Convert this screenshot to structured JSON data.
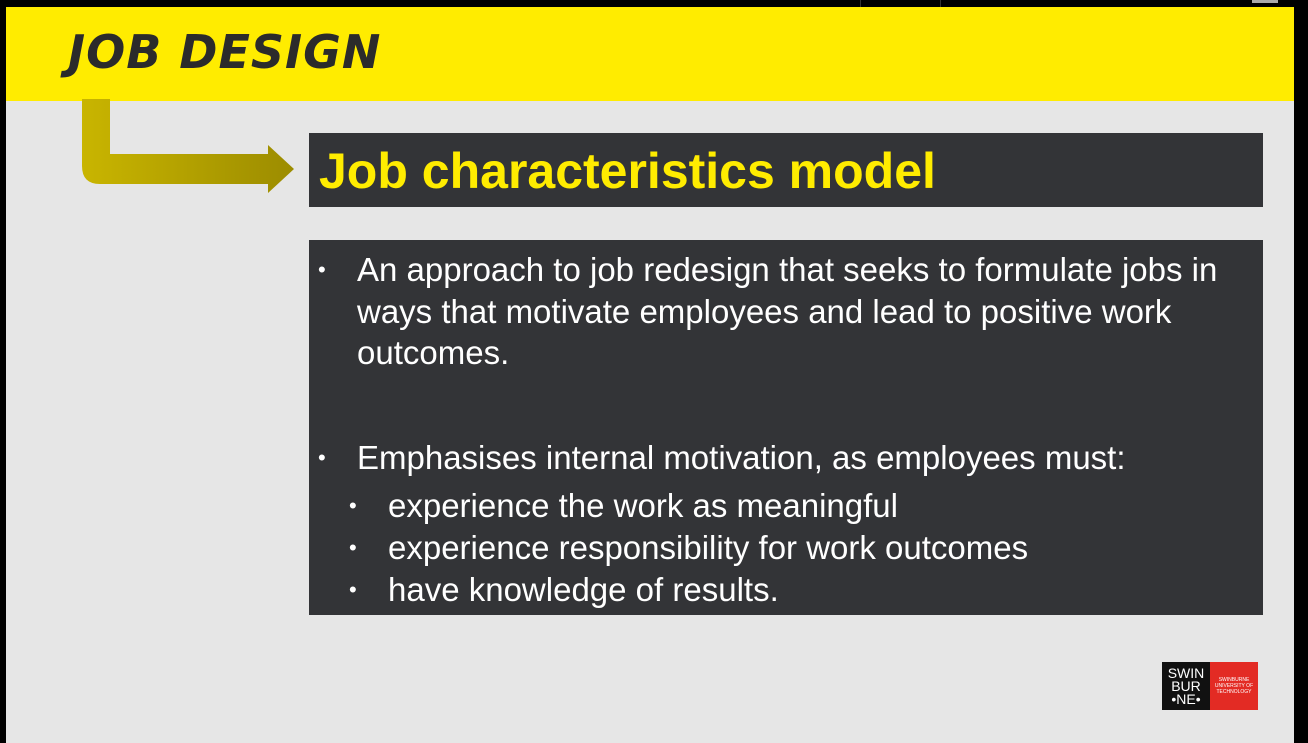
{
  "slide": {
    "title": "JOB DESIGN",
    "heading": "Job characteristics model",
    "bullets": [
      "An approach to job redesign that seeks to formulate jobs in ways that motivate employees and lead to positive work outcomes.",
      "Emphasises internal motivation, as employees must:"
    ],
    "sub_bullets": [
      "experience the work as meaningful",
      "experience responsibility for work outcomes",
      "have knowledge of results."
    ],
    "bullet_glyph": "•"
  },
  "logo": {
    "lines": [
      "SWIN",
      "BUR",
      "•NE•"
    ],
    "subtext_lines": [
      "SWINBURNE",
      "UNIVERSITY OF",
      "TECHNOLOGY"
    ]
  },
  "colors": {
    "accent_yellow": "#ffec00",
    "box_dark": "#333437",
    "slide_bg": "#e6e6e6",
    "logo_red": "#e32b24"
  }
}
